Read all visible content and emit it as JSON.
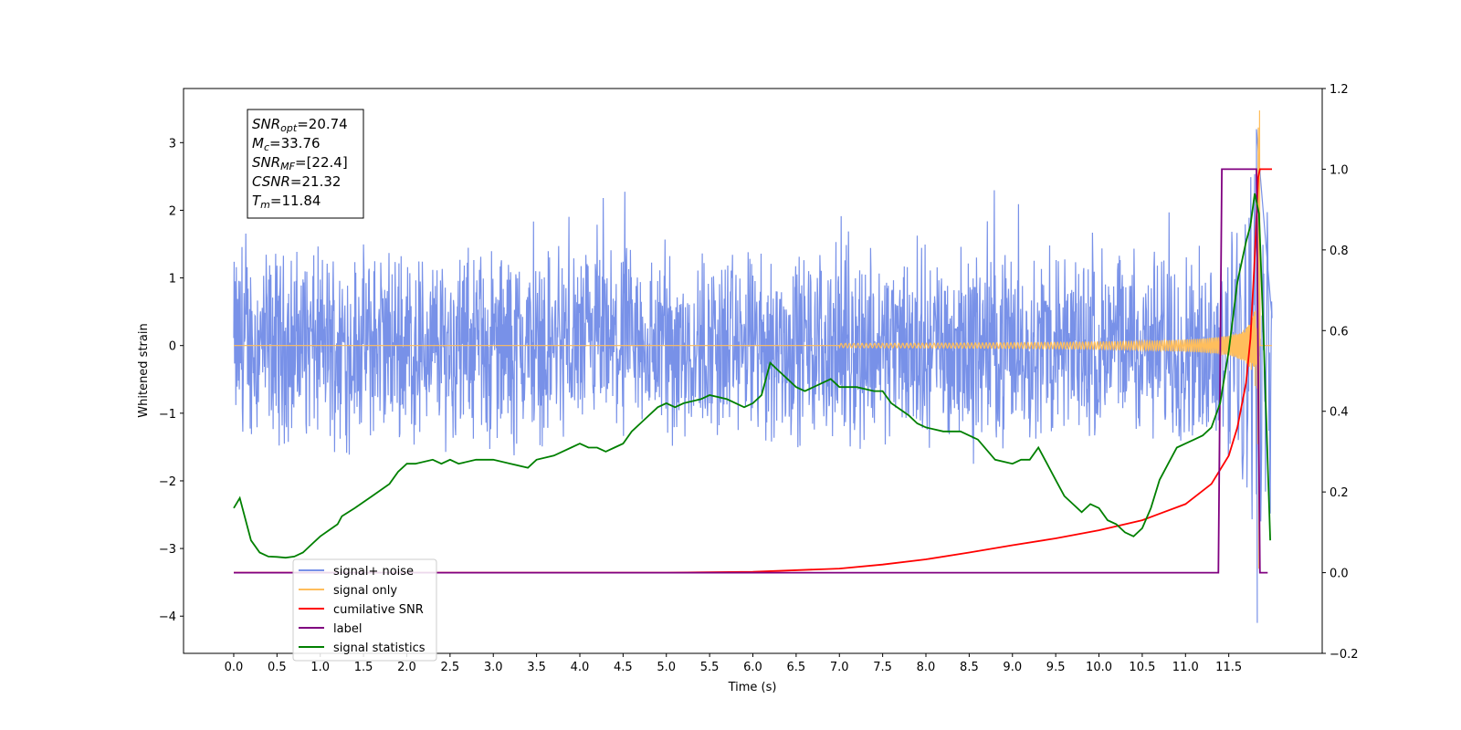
{
  "chart_data": {
    "type": "line",
    "xlabel": "Time (s)",
    "ylabel": "Whitened strain",
    "xlim": [
      -0.58,
      12.58
    ],
    "ylim": [
      -4.55,
      3.8
    ],
    "y2lim": [
      -0.2,
      1.2
    ],
    "x_ticks": [
      "0.0",
      "0.5",
      "1.0",
      "1.5",
      "2.0",
      "2.5",
      "3.0",
      "3.5",
      "4.0",
      "4.5",
      "5.0",
      "5.5",
      "6.0",
      "6.5",
      "7.0",
      "7.5",
      "8.0",
      "8.5",
      "9.0",
      "9.5",
      "10.0",
      "10.5",
      "11.0",
      "11.5"
    ],
    "y_ticks": [
      "3",
      "2",
      "1",
      "0",
      "−1",
      "−2",
      "−3",
      "−4"
    ],
    "y2_ticks": [
      "1.2",
      "1.0",
      "0.8",
      "0.6",
      "0.4",
      "0.2",
      "0.0",
      "−0.2"
    ],
    "annotation": {
      "lines": [
        {
          "var": "SNR",
          "sub": "opt",
          "rest": "=20.74"
        },
        {
          "var": "M",
          "sub": "c",
          "rest": "=33.76"
        },
        {
          "var": "SNR",
          "sub": "MF",
          "rest": "=[22.4]"
        },
        {
          "var": "CSNR",
          "sub": "",
          "rest": "=21.32"
        },
        {
          "var": "T",
          "sub": "m",
          "rest": "=11.84"
        }
      ]
    },
    "legend": {
      "placement": "lower-left",
      "entries": [
        {
          "name": "signal+ noise",
          "color": "#7891e8"
        },
        {
          "name": "signal only",
          "color": "#ffbe5c"
        },
        {
          "name": "cumilative SNR",
          "color": "#ff0000"
        },
        {
          "name": "label",
          "color": "#800080"
        },
        {
          "name": "signal statistics",
          "color": "#008000"
        }
      ]
    },
    "series": [
      {
        "name": "signal+ noise",
        "axis": "left",
        "color": "#7891e8",
        "description_envelope": {
          "t_start": 0.0,
          "t_end": 12.0,
          "typical_max": 1.6,
          "typical_min": -1.7,
          "peak_max": 3.2,
          "peak_min": -4.1,
          "peak_t": 11.82
        }
      },
      {
        "name": "signal only",
        "axis": "left",
        "color": "#ffbe5c",
        "chirp": {
          "t_start": 0.0,
          "t_merge": 11.84,
          "t_end": 12.0,
          "peak_amplitude": 3.5
        }
      },
      {
        "name": "cumilative SNR",
        "axis": "right",
        "color": "#ff0000",
        "x": [
          0.0,
          5.0,
          6.0,
          7.0,
          7.5,
          8.0,
          8.5,
          9.0,
          9.5,
          10.0,
          10.5,
          11.0,
          11.3,
          11.5,
          11.6,
          11.7,
          11.75,
          11.8,
          11.84,
          11.86,
          12.0
        ],
        "y": [
          0.0,
          0.0,
          0.002,
          0.01,
          0.02,
          0.033,
          0.05,
          0.068,
          0.085,
          0.105,
          0.13,
          0.17,
          0.22,
          0.29,
          0.36,
          0.47,
          0.58,
          0.78,
          0.98,
          1.0,
          1.0
        ]
      },
      {
        "name": "label",
        "axis": "right",
        "color": "#800080",
        "x": [
          0.0,
          11.38,
          11.42,
          11.82,
          11.86,
          11.9,
          11.95
        ],
        "y": [
          0.0,
          0.0,
          1.0,
          1.0,
          0.0,
          0.0,
          0.0
        ]
      },
      {
        "name": "signal statistics",
        "axis": "right",
        "color": "#008000",
        "x": [
          0.0,
          0.07,
          0.15,
          0.2,
          0.3,
          0.4,
          0.5,
          0.6,
          0.7,
          0.8,
          0.9,
          1.0,
          1.1,
          1.2,
          1.25,
          1.4,
          1.6,
          1.8,
          1.9,
          2.0,
          2.1,
          2.3,
          2.4,
          2.5,
          2.6,
          2.8,
          3.0,
          3.2,
          3.4,
          3.5,
          3.7,
          3.8,
          3.9,
          4.0,
          4.1,
          4.2,
          4.3,
          4.4,
          4.5,
          4.6,
          4.7,
          4.8,
          4.9,
          5.0,
          5.1,
          5.2,
          5.4,
          5.5,
          5.7,
          5.9,
          6.0,
          6.1,
          6.2,
          6.3,
          6.5,
          6.6,
          6.8,
          6.9,
          7.0,
          7.2,
          7.4,
          7.5,
          7.6,
          7.8,
          7.9,
          8.0,
          8.2,
          8.4,
          8.6,
          8.8,
          9.0,
          9.1,
          9.2,
          9.3,
          9.4,
          9.5,
          9.6,
          9.8,
          9.9,
          10.0,
          10.1,
          10.2,
          10.3,
          10.4,
          10.5,
          10.6,
          10.7,
          10.8,
          10.9,
          11.0,
          11.1,
          11.2,
          11.3,
          11.4,
          11.5,
          11.6,
          11.7,
          11.75,
          11.8,
          11.85,
          11.9,
          11.98
        ],
        "y": [
          0.16,
          0.185,
          0.12,
          0.08,
          0.05,
          0.04,
          0.039,
          0.037,
          0.04,
          0.05,
          0.07,
          0.09,
          0.105,
          0.12,
          0.14,
          0.16,
          0.19,
          0.22,
          0.25,
          0.27,
          0.27,
          0.28,
          0.27,
          0.28,
          0.27,
          0.28,
          0.28,
          0.27,
          0.26,
          0.28,
          0.29,
          0.3,
          0.31,
          0.32,
          0.31,
          0.31,
          0.3,
          0.31,
          0.32,
          0.35,
          0.37,
          0.39,
          0.41,
          0.42,
          0.41,
          0.42,
          0.43,
          0.44,
          0.43,
          0.41,
          0.42,
          0.44,
          0.52,
          0.5,
          0.46,
          0.45,
          0.47,
          0.48,
          0.46,
          0.46,
          0.45,
          0.45,
          0.42,
          0.39,
          0.37,
          0.36,
          0.35,
          0.35,
          0.33,
          0.28,
          0.27,
          0.28,
          0.28,
          0.31,
          0.27,
          0.23,
          0.19,
          0.15,
          0.17,
          0.16,
          0.13,
          0.12,
          0.1,
          0.09,
          0.11,
          0.16,
          0.23,
          0.27,
          0.31,
          0.32,
          0.33,
          0.34,
          0.36,
          0.42,
          0.55,
          0.72,
          0.82,
          0.86,
          0.94,
          0.89,
          0.6,
          0.08
        ]
      }
    ]
  }
}
